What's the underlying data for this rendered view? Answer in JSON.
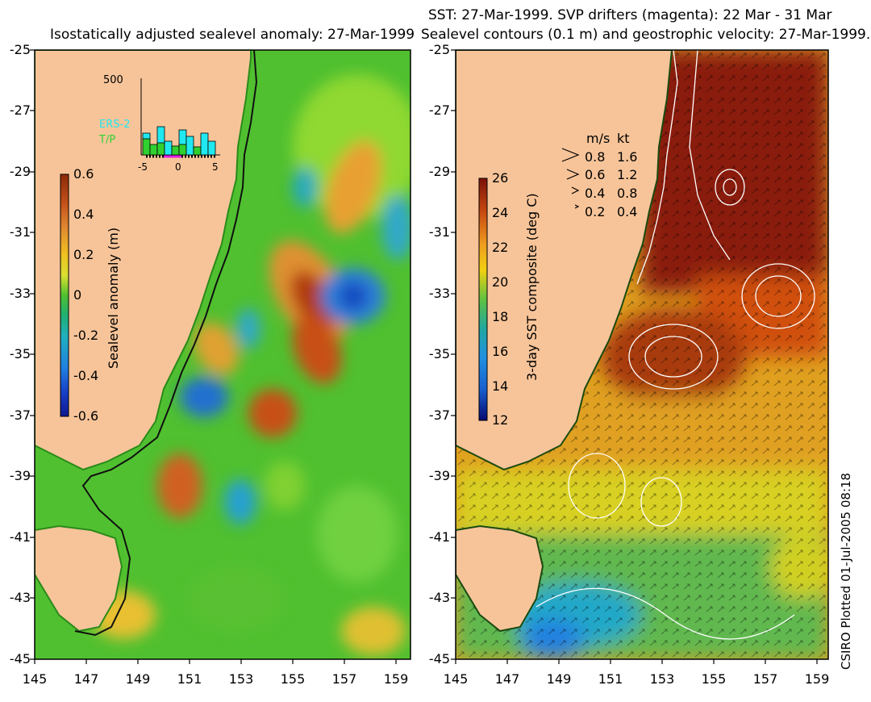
{
  "left_panel": {
    "title": "Isostatically adjusted sealevel anomaly: 27-Mar-1999",
    "colorbar": {
      "label": "Sealevel anomaly (m)",
      "ticks": [
        "0.6",
        "0.4",
        "0.2",
        "0",
        "-0.2",
        "-0.4",
        "-0.6"
      ],
      "colors": [
        "#8b2a08",
        "#c4511a",
        "#e08830",
        "#f0c020",
        "#d8e030",
        "#90d020",
        "#40c030",
        "#20b070",
        "#20b0c0",
        "#2080e0",
        "#1840c8",
        "#101890"
      ]
    },
    "inset": {
      "ymax_label": "500",
      "ers2_label": "ERS-2",
      "tp_label": "T/P",
      "ers2_color": "#20e8f0",
      "tp_color": "#30d030",
      "drifter_color": "#e020e0",
      "xticks": [
        "-5",
        "0",
        "5"
      ]
    }
  },
  "right_panel": {
    "title_line1": "SST: 27-Mar-1999. SVP drifters (magenta): 22 Mar - 31 Mar",
    "title_line2": "Sealevel contours (0.1 m) and geostrophic velocity: 27-Mar-1999.",
    "colorbar": {
      "label": "3-day SST composite (deg C)",
      "ticks": [
        "26",
        "24",
        "22",
        "20",
        "18",
        "16",
        "14",
        "12"
      ],
      "colors": [
        "#7a1008",
        "#a82010",
        "#c84a10",
        "#e07018",
        "#f0a020",
        "#f0d010",
        "#c8d820",
        "#60c040",
        "#20a860",
        "#20b0b0",
        "#2090e0",
        "#1860d0",
        "#1030a0",
        "#080870"
      ]
    },
    "legend": {
      "unit_ms": "m/s",
      "unit_kt": "kt",
      "rows": [
        {
          "ms": "0.8",
          "kt": "1.6"
        },
        {
          "ms": "0.6",
          "kt": "1.2"
        },
        {
          "ms": "0.4",
          "kt": "0.8"
        },
        {
          "ms": "0.2",
          "kt": "0.4"
        }
      ]
    }
  },
  "axes": {
    "lat_labels": [
      "-25",
      "-27",
      "-29",
      "-31",
      "-33",
      "-35",
      "-37",
      "-39",
      "-41",
      "-43",
      "-45"
    ],
    "lon_labels": [
      "145",
      "147",
      "149",
      "151",
      "153",
      "155",
      "157",
      "159"
    ]
  },
  "colors": {
    "land": "#f7c499",
    "coastline": "#2a5a1a",
    "contour": "#ffffff"
  },
  "credit": "CSIRO Plotted 01-Jul-2005 08:18"
}
